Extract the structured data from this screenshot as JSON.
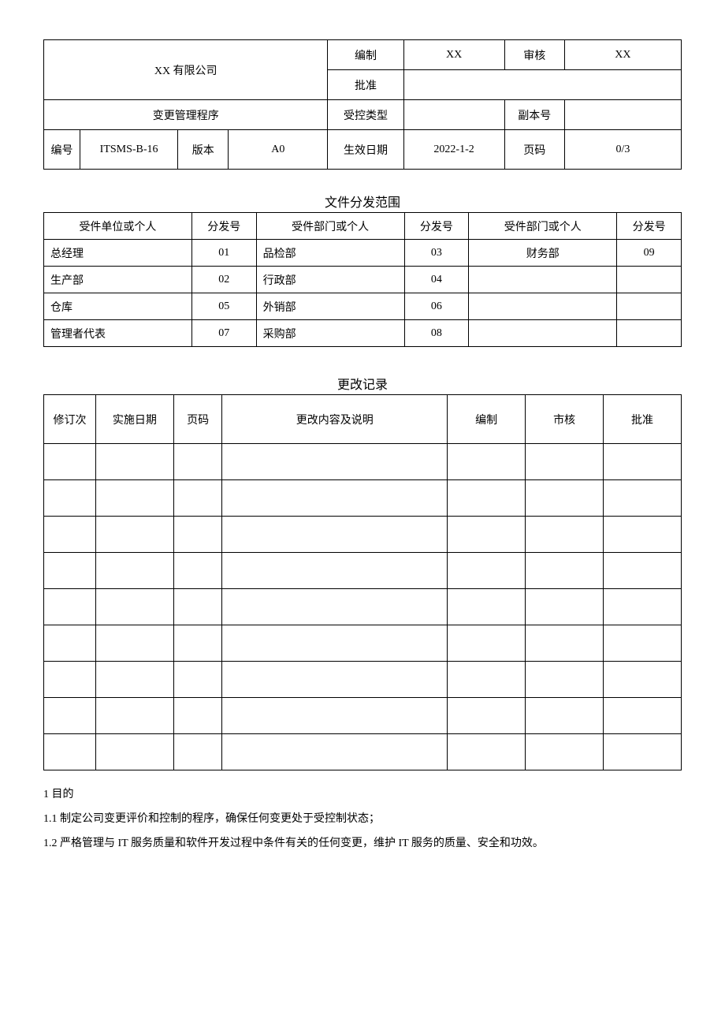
{
  "header": {
    "company": "XX 有限公司",
    "compile_label": "编制",
    "compile_value": "XX",
    "audit_label": "审核",
    "audit_value": "XX",
    "approve_label": "批准",
    "procedure_name": "变更管理程序",
    "ctrl_type_label": "受控类型",
    "copy_no_label": "副本号",
    "doc_no_label": "编号",
    "doc_no_value": "ITSMS-B-16",
    "version_label": "版本",
    "version_value": "A0",
    "eff_date_label": "生效日期",
    "eff_date_value": "2022-1-2",
    "page_label": "页码",
    "page_value": "0/3"
  },
  "distribution": {
    "title": "文件分发范围",
    "col_a": "受件单位或个人",
    "col_b": "分发号",
    "col_c": "受件部门或个人",
    "col_d": "分发号",
    "col_e": "受件部门或个人",
    "col_f": "分发号",
    "rows": [
      {
        "a": "总经理",
        "b": "01",
        "c": "品检部",
        "d": "03",
        "e": "财务部",
        "f": "09"
      },
      {
        "a": "生产部",
        "b": "02",
        "c": "行政部",
        "d": "04",
        "e": "",
        "f": ""
      },
      {
        "a": "仓库",
        "b": "05",
        "c": "外销部",
        "d": "06",
        "e": "",
        "f": ""
      },
      {
        "a": "管理者代表",
        "b": "07",
        "c": "采购部",
        "d": "08",
        "e": "",
        "f": ""
      }
    ]
  },
  "changelog": {
    "title": "更改记录",
    "h1": "修订次",
    "h2": "实施日期",
    "h3": "页码",
    "h4": "更改内容及说明",
    "h5": "编制",
    "h6": "市核",
    "h7": "批准",
    "blank_rows": 9
  },
  "body": {
    "sec1": "1 目的",
    "p1": "1.1  制定公司变更评价和控制的程序，确保任何变更处于受控制状态；",
    "p2": "1.2  严格管理与 IT 服务质量和软件开发过程中条件有关的任何变更，维护 IT 服务的质量、安全和功效。"
  },
  "style": {
    "font_family": "SimSun",
    "body_fontsize_pt": 10.5,
    "title_fontsize_pt": 12,
    "border_color": "#000000",
    "background_color": "#ffffff",
    "text_color": "#000000"
  }
}
